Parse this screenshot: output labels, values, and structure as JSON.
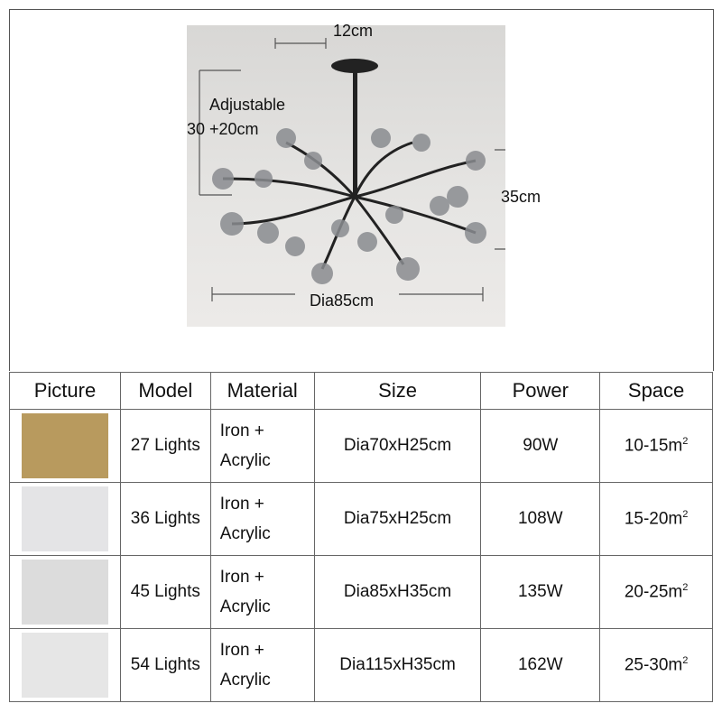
{
  "diagram": {
    "top_width": "12cm",
    "adjustable_label": "Adjustable",
    "rod_length": "30 +20cm",
    "height": "35cm",
    "diameter": "Dia85cm"
  },
  "table": {
    "headers": [
      "Picture",
      "Model",
      "Material",
      "Size",
      "Power",
      "Space"
    ],
    "rows": [
      {
        "model": "27 Lights",
        "material_1": "Iron +",
        "material_2": "Acrylic",
        "size": "Dia70xH25cm",
        "power": "90W",
        "space": "10-15m",
        "sup": "2",
        "thumb_bg": "#b89a5e"
      },
      {
        "model": "36 Lights",
        "material_1": "Iron +",
        "material_2": "Acrylic",
        "size": "Dia75xH25cm",
        "power": "108W",
        "space": "15-20m",
        "sup": "2",
        "thumb_bg": "#e4e4e6"
      },
      {
        "model": "45 Lights",
        "material_1": "Iron +",
        "material_2": "Acrylic",
        "size": "Dia85xH35cm",
        "power": "135W",
        "space": "20-25m",
        "sup": "2",
        "thumb_bg": "#dcdcdc"
      },
      {
        "model": "54 Lights",
        "material_1": "Iron +",
        "material_2": "Acrylic",
        "size": "Dia115xH35cm",
        "power": "162W",
        "space": "25-30m",
        "sup": "2",
        "thumb_bg": "#e6e6e6"
      }
    ]
  }
}
